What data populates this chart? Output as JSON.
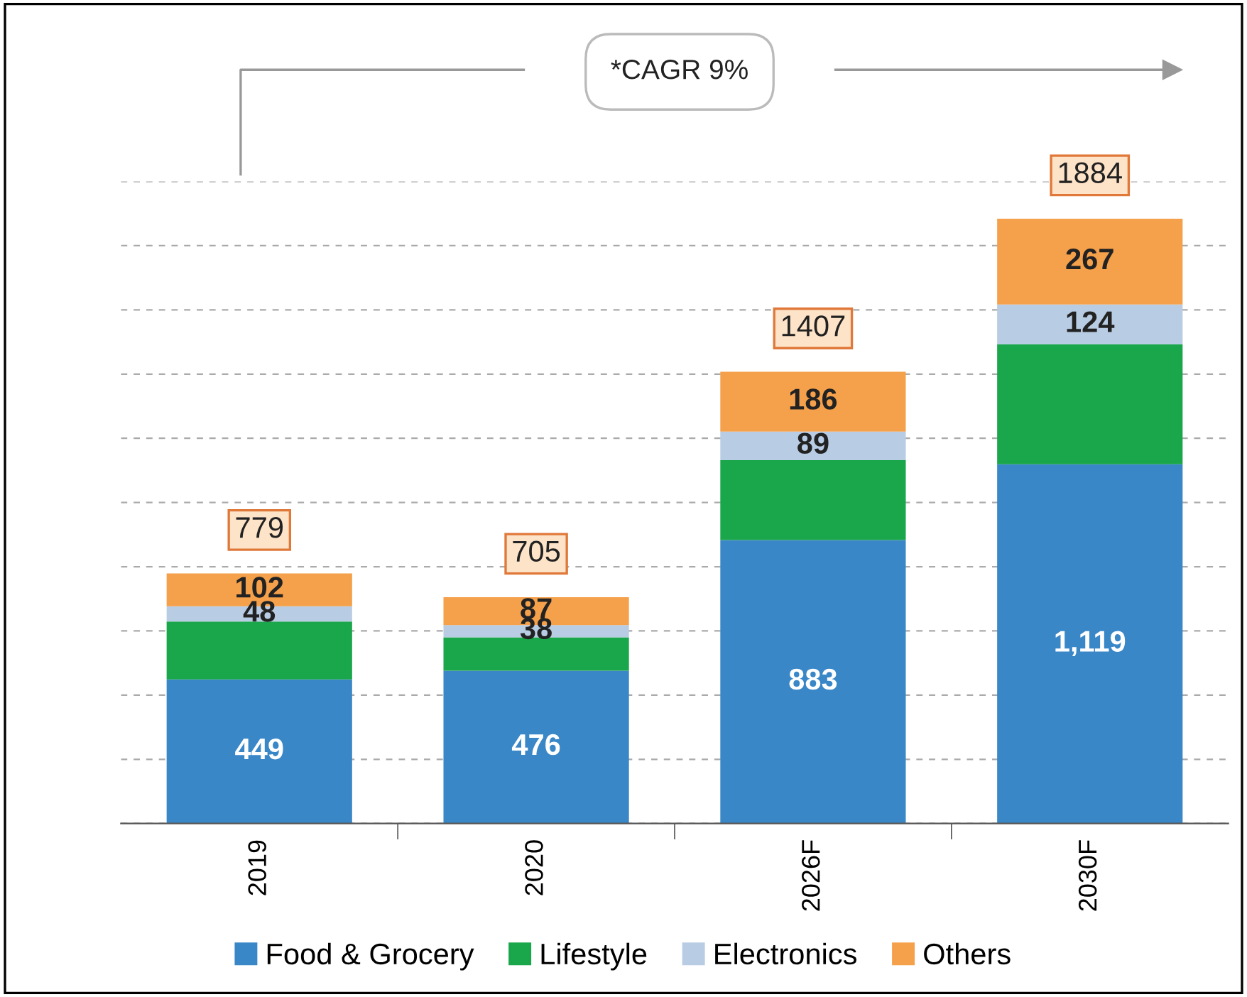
{
  "chart_data": {
    "type": "bar",
    "stacked": true,
    "categories": [
      "2019",
      "2020",
      "2026F",
      "2030F"
    ],
    "series": [
      {
        "name": "Food & Grocery",
        "color": "#3a87c8",
        "values": [
          449,
          476,
          883,
          1119
        ],
        "value_labels": [
          "449",
          "476",
          "883",
          "1,119"
        ]
      },
      {
        "name": "Lifestyle",
        "color": "#1aa64a",
        "values": [
          180,
          104,
          249,
          374
        ],
        "value_labels": [
          null,
          null,
          null,
          null
        ]
      },
      {
        "name": "Electronics",
        "color": "#b8cce4",
        "values": [
          48,
          38,
          89,
          124
        ],
        "value_labels": [
          "48",
          "38",
          "89",
          "124"
        ]
      },
      {
        "name": "Others",
        "color": "#f5a04a",
        "values": [
          102,
          87,
          186,
          267
        ],
        "value_labels": [
          "102",
          "87",
          "186",
          "267"
        ]
      }
    ],
    "totals": [
      "779",
      "705",
      "1407",
      "1884"
    ],
    "ylim": [
      0,
      2000
    ],
    "yticks": [
      {
        "value": 0,
        "label": null
      },
      {
        "value": 200,
        "label": null
      },
      {
        "value": 400,
        "label": null
      },
      {
        "value": 600,
        "label": null
      },
      {
        "value": 800,
        "label": null
      },
      {
        "value": 1000,
        "label": null
      },
      {
        "value": 1200,
        "label": null
      },
      {
        "value": 1400,
        "label": null
      },
      {
        "value": 1600,
        "label": null
      },
      {
        "value": 1800,
        "label": null
      },
      {
        "value": 2000,
        "label": null
      }
    ],
    "tick_labels": "x",
    "grid": "y",
    "legend": "bottom",
    "annotations": [
      "*CAGR 9%"
    ]
  }
}
